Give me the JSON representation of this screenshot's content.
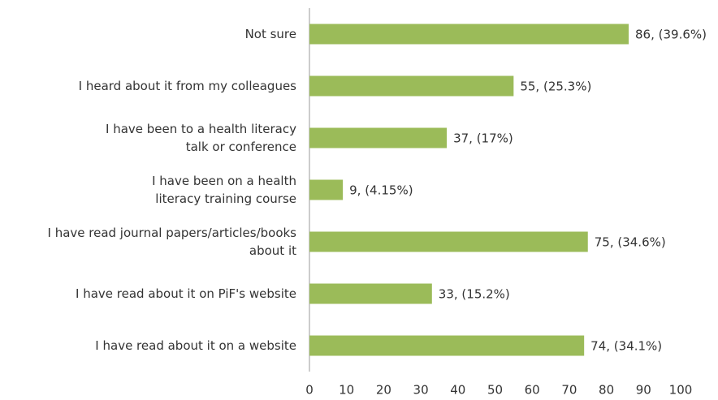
{
  "chart_data": {
    "type": "bar",
    "orientation": "horizontal",
    "categories": [
      "Not sure",
      "I heard about it from my colleagues",
      "I have been to a health literacy\ntalk or conference",
      "I have been on a health\nliteracy training course",
      "I have read journal papers/articles/books\nabout it",
      "I have read about it on PiF's website",
      "I have read about it on a website"
    ],
    "values": [
      86,
      55,
      37,
      9,
      75,
      33,
      74
    ],
    "value_labels": [
      "86, (39.6%)",
      "55, (25.3%)",
      "37, (17%)",
      "9, (4.15%)",
      "75, (34.6%)",
      "33, (15.2%)",
      "74, (34.1%)"
    ],
    "color": "#9bbb59",
    "xlim": [
      0,
      100
    ],
    "xticks": [
      0,
      10,
      20,
      30,
      40,
      50,
      60,
      70,
      80,
      90,
      100
    ],
    "grid": false
  }
}
